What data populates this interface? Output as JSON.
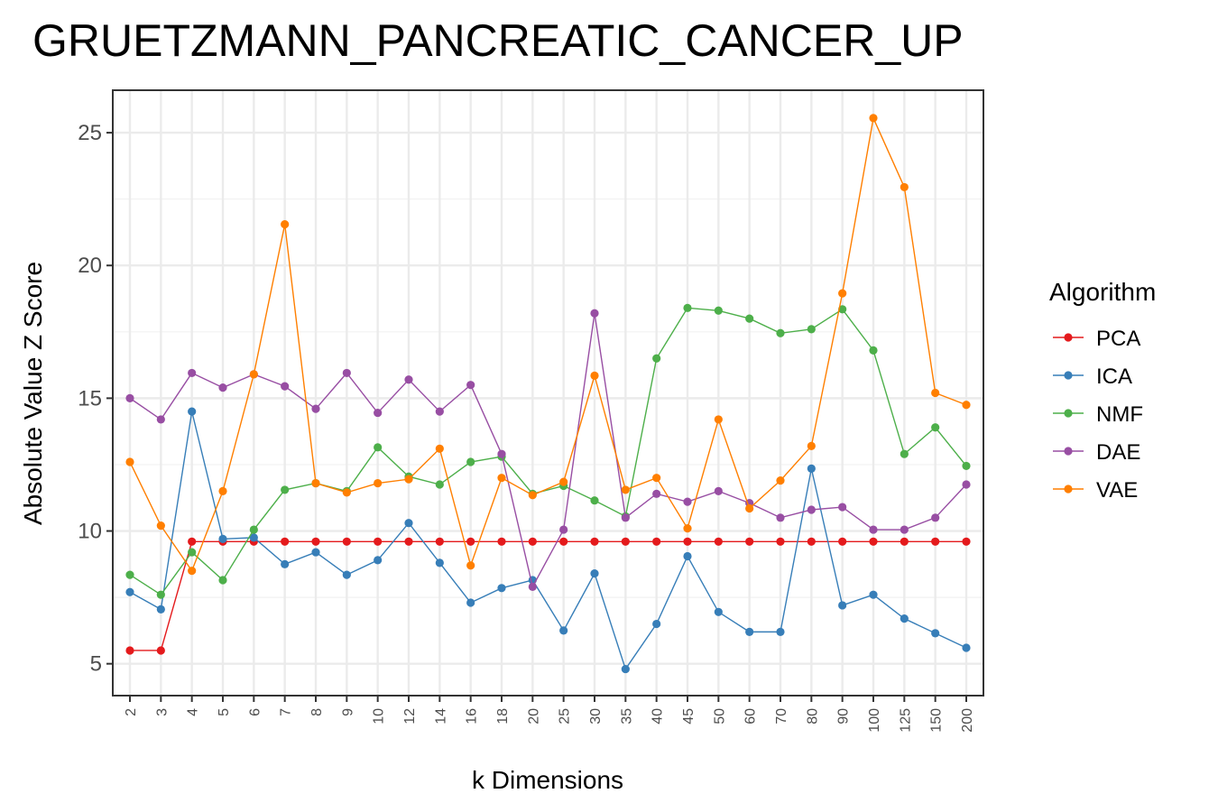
{
  "chart_data": {
    "type": "line",
    "title": "GRUETZMANN_PANCREATIC_CANCER_UP",
    "xlabel": "k Dimensions",
    "ylabel": "Absolute Value Z Score",
    "categories": [
      "2",
      "3",
      "4",
      "5",
      "6",
      "7",
      "8",
      "9",
      "10",
      "12",
      "14",
      "16",
      "18",
      "20",
      "25",
      "30",
      "35",
      "40",
      "45",
      "50",
      "60",
      "70",
      "80",
      "90",
      "100",
      "125",
      "150",
      "200"
    ],
    "ylim": [
      3.8,
      26.6
    ],
    "yticks": [
      5,
      10,
      15,
      20,
      25
    ],
    "grid": true,
    "legend": {
      "title": "Algorithm",
      "position": "right"
    },
    "series": [
      {
        "name": "PCA",
        "color": "#E41A1C",
        "values": [
          5.5,
          5.5,
          9.6,
          9.6,
          9.6,
          9.6,
          9.6,
          9.6,
          9.6,
          9.6,
          9.6,
          9.6,
          9.6,
          9.6,
          9.6,
          9.6,
          9.6,
          9.6,
          9.6,
          9.6,
          9.6,
          9.6,
          9.6,
          9.6,
          9.6,
          9.6,
          9.6,
          9.6
        ]
      },
      {
        "name": "ICA",
        "color": "#377EB8",
        "values": [
          7.7,
          7.05,
          14.5,
          9.7,
          9.75,
          8.75,
          9.2,
          8.35,
          8.9,
          10.3,
          8.8,
          7.3,
          7.85,
          8.15,
          6.25,
          8.4,
          4.8,
          6.5,
          9.05,
          6.95,
          6.2,
          6.2,
          12.35,
          7.2,
          7.6,
          6.7,
          6.15,
          5.6
        ]
      },
      {
        "name": "NMF",
        "color": "#4DAF4A",
        "values": [
          8.35,
          7.6,
          9.2,
          8.15,
          10.05,
          11.55,
          11.8,
          11.5,
          13.15,
          12.05,
          11.75,
          12.6,
          12.8,
          11.4,
          11.7,
          11.15,
          10.55,
          16.5,
          18.4,
          18.3,
          18.0,
          17.45,
          17.6,
          18.35,
          16.8,
          12.9,
          13.9,
          12.45
        ]
      },
      {
        "name": "DAE",
        "color": "#984EA3",
        "values": [
          15.0,
          14.2,
          15.95,
          15.4,
          15.9,
          15.45,
          14.6,
          15.95,
          14.45,
          15.7,
          14.5,
          15.5,
          12.9,
          7.9,
          10.05,
          18.2,
          10.5,
          11.4,
          11.1,
          11.5,
          11.05,
          10.5,
          10.8,
          10.9,
          10.05,
          10.05,
          10.5,
          11.75
        ]
      },
      {
        "name": "VAE",
        "color": "#FF7F00",
        "values": [
          12.6,
          10.2,
          8.5,
          11.5,
          15.9,
          21.55,
          11.8,
          11.45,
          11.8,
          11.95,
          13.1,
          8.7,
          12.0,
          11.35,
          11.85,
          15.85,
          11.55,
          12.0,
          10.1,
          14.2,
          10.85,
          11.9,
          13.2,
          18.95,
          25.55,
          22.95,
          15.2,
          14.75
        ]
      }
    ]
  }
}
